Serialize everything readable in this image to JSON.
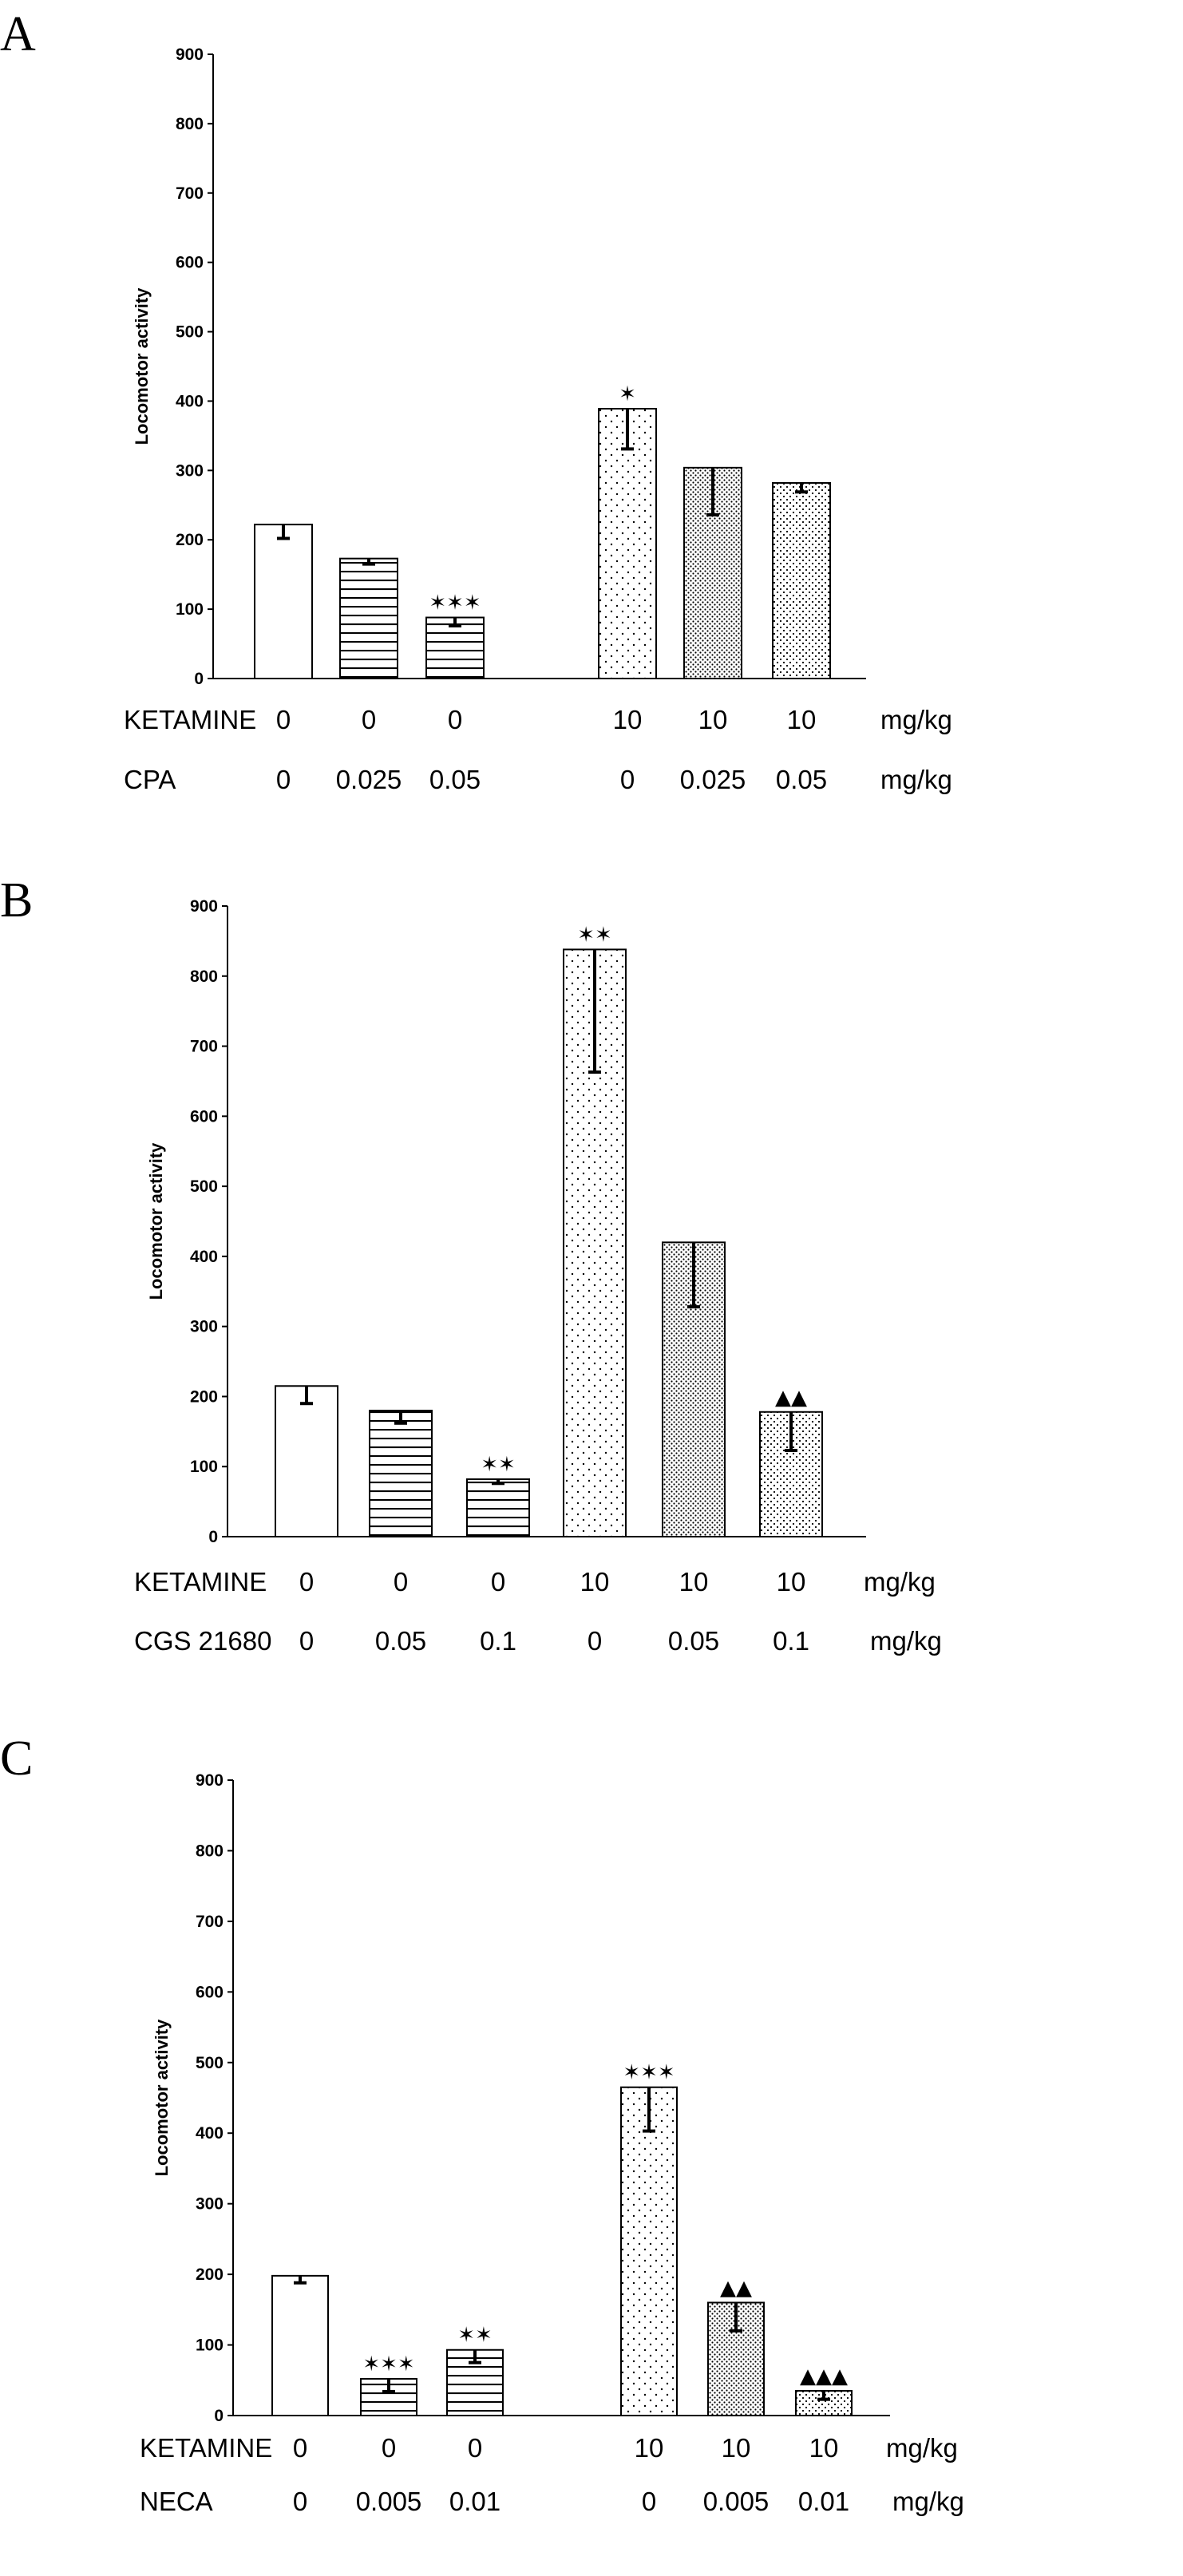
{
  "panels": [
    {
      "letter": "A",
      "chart_data": {
        "type": "bar",
        "ylabel": "Locomotor activity",
        "ylim": [
          0,
          900
        ],
        "yticks": [
          0,
          100,
          200,
          300,
          400,
          500,
          600,
          700,
          800,
          900
        ],
        "bars": [
          {
            "value": 222,
            "err": 20,
            "pattern": "white",
            "sig": ""
          },
          {
            "value": 173,
            "err": 8,
            "pattern": "hlines",
            "sig": ""
          },
          {
            "value": 88,
            "err": 12,
            "pattern": "hlines",
            "sig": "✶✶✶"
          },
          {
            "value": 389,
            "err": 58,
            "pattern": "sparse",
            "sig": "✶"
          },
          {
            "value": 304,
            "err": 68,
            "pattern": "dense",
            "sig": ""
          },
          {
            "value": 282,
            "err": 13,
            "pattern": "medium",
            "sig": ""
          }
        ],
        "table": [
          {
            "label": "KETAMINE",
            "values": [
              "0",
              "0",
              "0",
              "10",
              "10",
              "10"
            ],
            "unit": "mg/kg"
          },
          {
            "label": "CPA",
            "values": [
              "0",
              "0.025",
              "0.05",
              "0",
              "0.025",
              "0.05"
            ],
            "unit": "mg/kg"
          }
        ]
      }
    },
    {
      "letter": "B",
      "chart_data": {
        "type": "bar",
        "ylabel": "Locomotor activity",
        "ylim": [
          0,
          900
        ],
        "yticks": [
          0,
          100,
          200,
          300,
          400,
          500,
          600,
          700,
          800,
          900
        ],
        "bars": [
          {
            "value": 215,
            "err": 25,
            "pattern": "white",
            "sig": ""
          },
          {
            "value": 180,
            "err": 18,
            "pattern": "hlines",
            "sig": ""
          },
          {
            "value": 82,
            "err": 6,
            "pattern": "hlines",
            "sig": "✶✶"
          },
          {
            "value": 838,
            "err": 175,
            "pattern": "sparse",
            "sig": "✶✶"
          },
          {
            "value": 420,
            "err": 92,
            "pattern": "dense",
            "sig": ""
          },
          {
            "value": 178,
            "err": 55,
            "pattern": "medium",
            "sig": "▲▲"
          }
        ],
        "table": [
          {
            "label": "KETAMINE",
            "values": [
              "0",
              "0",
              "0",
              "10",
              "10",
              "10"
            ],
            "unit": "mg/kg"
          },
          {
            "label": "CGS 21680",
            "values": [
              "0",
              "0.05",
              "0.1",
              "0",
              "0.05",
              "0.1"
            ],
            "unit": "mg/kg"
          }
        ]
      }
    },
    {
      "letter": "C",
      "chart_data": {
        "type": "bar",
        "ylabel": "Locomotor activity",
        "ylim": [
          0,
          900
        ],
        "yticks": [
          0,
          100,
          200,
          300,
          400,
          500,
          600,
          700,
          800,
          900
        ],
        "bars": [
          {
            "value": 198,
            "err": 10,
            "pattern": "white",
            "sig": ""
          },
          {
            "value": 52,
            "err": 18,
            "pattern": "hlines",
            "sig": "✶✶✶"
          },
          {
            "value": 93,
            "err": 18,
            "pattern": "hlines",
            "sig": "✶✶"
          },
          {
            "value": 465,
            "err": 62,
            "pattern": "sparse",
            "sig": "✶✶✶"
          },
          {
            "value": 160,
            "err": 40,
            "pattern": "dense",
            "sig": "▲▲"
          },
          {
            "value": 35,
            "err": 12,
            "pattern": "medium",
            "sig": "▲▲▲"
          }
        ],
        "table": [
          {
            "label": "KETAMINE",
            "values": [
              "0",
              "0",
              "0",
              "10",
              "10",
              "10"
            ],
            "unit": "mg/kg"
          },
          {
            "label": "NECA",
            "values": [
              "0",
              "0.005",
              "0.01",
              "0",
              "0.005",
              "0.01"
            ],
            "unit": "mg/kg"
          }
        ]
      }
    }
  ]
}
